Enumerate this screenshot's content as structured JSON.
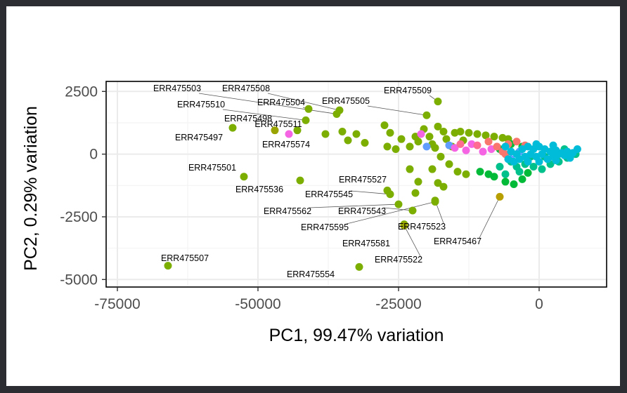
{
  "chart_data": {
    "type": "scatter",
    "title": "",
    "xlabel": "PC1, 99.47% variation",
    "ylabel": "PC2, 0.29% variation",
    "xlim": [
      -77000,
      12000
    ],
    "ylim": [
      -5300,
      2900
    ],
    "x_ticks": [
      {
        "value": -75000,
        "label": "-75000"
      },
      {
        "value": -50000,
        "label": "-50000"
      },
      {
        "value": -25000,
        "label": "-25000"
      },
      {
        "value": 0,
        "label": "0"
      }
    ],
    "y_ticks": [
      {
        "value": 2500,
        "label": "2500"
      },
      {
        "value": 0,
        "label": "0"
      },
      {
        "value": -2500,
        "label": "-2500"
      },
      {
        "value": -5000,
        "label": "-5000"
      }
    ],
    "grid": true,
    "legend": "none",
    "point_colors": {
      "olive": "#7cae00",
      "darkolive": "#9aa400",
      "gold": "#b79f00",
      "green": "#00ba38",
      "teal": "#00c08b",
      "cyan": "#00bcd8",
      "blue": "#619cff",
      "magenta": "#f564e3",
      "pink": "#f8766d",
      "rose": "#ff6c91"
    },
    "labeled_points": [
      {
        "label": "ERR475503",
        "x": -36000,
        "y": 1600,
        "color": "olive"
      },
      {
        "label": "ERR475508",
        "x": -35500,
        "y": 1750,
        "color": "olive"
      },
      {
        "label": "ERR475504",
        "x": -41000,
        "y": 1800,
        "color": "olive"
      },
      {
        "label": "ERR475510",
        "x": -41500,
        "y": 1350,
        "color": "olive"
      },
      {
        "label": "ERR475498",
        "x": -47000,
        "y": 950,
        "color": "darkolive"
      },
      {
        "label": "ERR475511",
        "x": -43000,
        "y": 950,
        "color": "olive"
      },
      {
        "label": "ERR475497",
        "x": -54500,
        "y": 1050,
        "color": "olive"
      },
      {
        "label": "ERR475574",
        "x": -44500,
        "y": 800,
        "color": "magenta"
      },
      {
        "label": "ERR475505",
        "x": -20000,
        "y": 1550,
        "color": "olive"
      },
      {
        "label": "ERR475509",
        "x": -18000,
        "y": 2100,
        "color": "olive"
      },
      {
        "label": "ERR475501",
        "x": -52500,
        "y": -900,
        "color": "olive"
      },
      {
        "label": "ERR475536",
        "x": -42500,
        "y": -1050,
        "color": "olive"
      },
      {
        "label": "ERR475527",
        "x": -27000,
        "y": -1450,
        "color": "olive"
      },
      {
        "label": "ERR475545",
        "x": -26500,
        "y": -1600,
        "color": "olive"
      },
      {
        "label": "ERR475562",
        "x": -25000,
        "y": -2000,
        "color": "olive"
      },
      {
        "label": "ERR475543",
        "x": -22500,
        "y": -2250,
        "color": "olive"
      },
      {
        "label": "ERR475523",
        "x": -18500,
        "y": -1850,
        "color": "olive"
      },
      {
        "label": "ERR475595",
        "x": -18500,
        "y": -1900,
        "color": "olive"
      },
      {
        "label": "ERR475581",
        "x": -24000,
        "y": -2800,
        "color": "olive"
      },
      {
        "label": "ERR475522",
        "x": -24000,
        "y": -2850,
        "color": "darkolive"
      },
      {
        "label": "ERR475467",
        "x": -7000,
        "y": -1700,
        "color": "gold"
      },
      {
        "label": "ERR475507",
        "x": -66000,
        "y": -4450,
        "color": "olive"
      },
      {
        "label": "ERR475554",
        "x": -32000,
        "y": -4500,
        "color": "olive"
      }
    ],
    "other_points": [
      {
        "x": -38000,
        "y": 800,
        "color": "olive"
      },
      {
        "x": -35000,
        "y": 900,
        "color": "olive"
      },
      {
        "x": -32500,
        "y": 800,
        "color": "olive"
      },
      {
        "x": -31000,
        "y": 450,
        "color": "olive"
      },
      {
        "x": -34000,
        "y": 550,
        "color": "olive"
      },
      {
        "x": -27500,
        "y": 1150,
        "color": "olive"
      },
      {
        "x": -26500,
        "y": 850,
        "color": "olive"
      },
      {
        "x": -27000,
        "y": 300,
        "color": "olive"
      },
      {
        "x": -24500,
        "y": 600,
        "color": "olive"
      },
      {
        "x": -23000,
        "y": 300,
        "color": "olive"
      },
      {
        "x": -22000,
        "y": 700,
        "color": "olive"
      },
      {
        "x": -21500,
        "y": 500,
        "color": "olive"
      },
      {
        "x": -20500,
        "y": 1000,
        "color": "olive"
      },
      {
        "x": -19500,
        "y": 700,
        "color": "olive"
      },
      {
        "x": -19000,
        "y": 400,
        "color": "olive"
      },
      {
        "x": -18000,
        "y": 1100,
        "color": "olive"
      },
      {
        "x": -17000,
        "y": 900,
        "color": "olive"
      },
      {
        "x": -16500,
        "y": 600,
        "color": "olive"
      },
      {
        "x": -15500,
        "y": 300,
        "color": "olive"
      },
      {
        "x": -15000,
        "y": 850,
        "color": "olive"
      },
      {
        "x": -14000,
        "y": 900,
        "color": "olive"
      },
      {
        "x": -13500,
        "y": 550,
        "color": "olive"
      },
      {
        "x": -12500,
        "y": 850,
        "color": "olive"
      },
      {
        "x": -11000,
        "y": 800,
        "color": "olive"
      },
      {
        "x": -9500,
        "y": 750,
        "color": "olive"
      },
      {
        "x": -8000,
        "y": 700,
        "color": "olive"
      },
      {
        "x": -6500,
        "y": 650,
        "color": "olive"
      },
      {
        "x": -5500,
        "y": 600,
        "color": "olive"
      },
      {
        "x": -18500,
        "y": 250,
        "color": "olive"
      },
      {
        "x": -17500,
        "y": -100,
        "color": "olive"
      },
      {
        "x": -16000,
        "y": -400,
        "color": "olive"
      },
      {
        "x": -14500,
        "y": -700,
        "color": "olive"
      },
      {
        "x": -13000,
        "y": -800,
        "color": "olive"
      },
      {
        "x": -19000,
        "y": -600,
        "color": "olive"
      },
      {
        "x": -21500,
        "y": -1100,
        "color": "olive"
      },
      {
        "x": -23000,
        "y": -600,
        "color": "olive"
      },
      {
        "x": -25500,
        "y": 200,
        "color": "olive"
      },
      {
        "x": -22000,
        "y": -1550,
        "color": "olive"
      },
      {
        "x": -18000,
        "y": -1150,
        "color": "olive"
      },
      {
        "x": -17000,
        "y": -1300,
        "color": "olive"
      },
      {
        "x": -10500,
        "y": -700,
        "color": "green"
      },
      {
        "x": -9000,
        "y": -800,
        "color": "green"
      },
      {
        "x": -8000,
        "y": -900,
        "color": "green"
      },
      {
        "x": -6000,
        "y": -1100,
        "color": "green"
      },
      {
        "x": -4500,
        "y": -1200,
        "color": "green"
      },
      {
        "x": -3000,
        "y": -1000,
        "color": "green"
      },
      {
        "x": -2000,
        "y": -750,
        "color": "green"
      },
      {
        "x": -7000,
        "y": 200,
        "color": "green"
      },
      {
        "x": -5000,
        "y": 400,
        "color": "green"
      },
      {
        "x": -3000,
        "y": 300,
        "color": "green"
      },
      {
        "x": -20000,
        "y": 300,
        "color": "blue"
      },
      {
        "x": -16000,
        "y": 350,
        "color": "blue"
      },
      {
        "x": -5000,
        "y": -200,
        "color": "blue"
      },
      {
        "x": -3500,
        "y": 100,
        "color": "blue"
      },
      {
        "x": -21000,
        "y": 800,
        "color": "magenta"
      },
      {
        "x": -15000,
        "y": 250,
        "color": "magenta"
      },
      {
        "x": -13000,
        "y": 150,
        "color": "magenta"
      },
      {
        "x": -12000,
        "y": 400,
        "color": "magenta"
      },
      {
        "x": -10000,
        "y": 100,
        "color": "magenta"
      },
      {
        "x": -8500,
        "y": 200,
        "color": "magenta"
      },
      {
        "x": -14000,
        "y": 400,
        "color": "rose"
      },
      {
        "x": -11000,
        "y": 350,
        "color": "rose"
      },
      {
        "x": -9000,
        "y": 500,
        "color": "pink"
      },
      {
        "x": -7500,
        "y": 300,
        "color": "pink"
      },
      {
        "x": -6500,
        "y": 100,
        "color": "pink"
      },
      {
        "x": -5500,
        "y": 400,
        "color": "pink"
      },
      {
        "x": -4000,
        "y": 500,
        "color": "pink"
      },
      {
        "x": -6000,
        "y": 0,
        "color": "pink"
      },
      {
        "x": -2500,
        "y": 350,
        "color": "pink"
      },
      {
        "x": -5000,
        "y": -300,
        "color": "teal"
      },
      {
        "x": -4000,
        "y": -500,
        "color": "teal"
      },
      {
        "x": -2500,
        "y": -400,
        "color": "teal"
      },
      {
        "x": -1000,
        "y": -500,
        "color": "teal"
      },
      {
        "x": 500,
        "y": -600,
        "color": "teal"
      },
      {
        "x": 2000,
        "y": -400,
        "color": "teal"
      },
      {
        "x": 3500,
        "y": -300,
        "color": "teal"
      },
      {
        "x": 5000,
        "y": -150,
        "color": "teal"
      },
      {
        "x": 6500,
        "y": 0,
        "color": "teal"
      },
      {
        "x": -7000,
        "y": -500,
        "color": "teal"
      },
      {
        "x": -6000,
        "y": -800,
        "color": "teal"
      },
      {
        "x": -1500,
        "y": -100,
        "color": "teal"
      },
      {
        "x": 1000,
        "y": -100,
        "color": "teal"
      },
      {
        "x": -3500,
        "y": -700,
        "color": "teal"
      },
      {
        "x": 4500,
        "y": 200,
        "color": "teal"
      },
      {
        "x": -6000,
        "y": 300,
        "color": "cyan"
      },
      {
        "x": -5000,
        "y": 100,
        "color": "cyan"
      },
      {
        "x": -4000,
        "y": 0,
        "color": "cyan"
      },
      {
        "x": -3000,
        "y": 200,
        "color": "cyan"
      },
      {
        "x": -2000,
        "y": 300,
        "color": "cyan"
      },
      {
        "x": -1000,
        "y": 200,
        "color": "cyan"
      },
      {
        "x": 0,
        "y": 300,
        "color": "cyan"
      },
      {
        "x": 1000,
        "y": 200,
        "color": "cyan"
      },
      {
        "x": 2000,
        "y": 100,
        "color": "cyan"
      },
      {
        "x": 3000,
        "y": 150,
        "color": "cyan"
      },
      {
        "x": 4000,
        "y": 50,
        "color": "cyan"
      },
      {
        "x": 5000,
        "y": 100,
        "color": "cyan"
      },
      {
        "x": 6000,
        "y": 50,
        "color": "cyan"
      },
      {
        "x": 6800,
        "y": 200,
        "color": "cyan"
      },
      {
        "x": -4500,
        "y": -300,
        "color": "cyan"
      },
      {
        "x": -3500,
        "y": -200,
        "color": "cyan"
      },
      {
        "x": -2500,
        "y": -100,
        "color": "cyan"
      },
      {
        "x": -1500,
        "y": 0,
        "color": "cyan"
      },
      {
        "x": -500,
        "y": -100,
        "color": "cyan"
      },
      {
        "x": 500,
        "y": 0,
        "color": "cyan"
      },
      {
        "x": 1500,
        "y": -200,
        "color": "cyan"
      },
      {
        "x": 2500,
        "y": -100,
        "color": "cyan"
      },
      {
        "x": 3500,
        "y": 0,
        "color": "cyan"
      },
      {
        "x": 4500,
        "y": -50,
        "color": "cyan"
      },
      {
        "x": 5500,
        "y": -150,
        "color": "cyan"
      },
      {
        "x": -5500,
        "y": -200,
        "color": "cyan"
      },
      {
        "x": -500,
        "y": 400,
        "color": "cyan"
      },
      {
        "x": 2500,
        "y": 350,
        "color": "cyan"
      },
      {
        "x": -2000,
        "y": -300,
        "color": "cyan"
      },
      {
        "x": 0,
        "y": -300,
        "color": "cyan"
      },
      {
        "x": 3000,
        "y": -250,
        "color": "cyan"
      }
    ]
  }
}
